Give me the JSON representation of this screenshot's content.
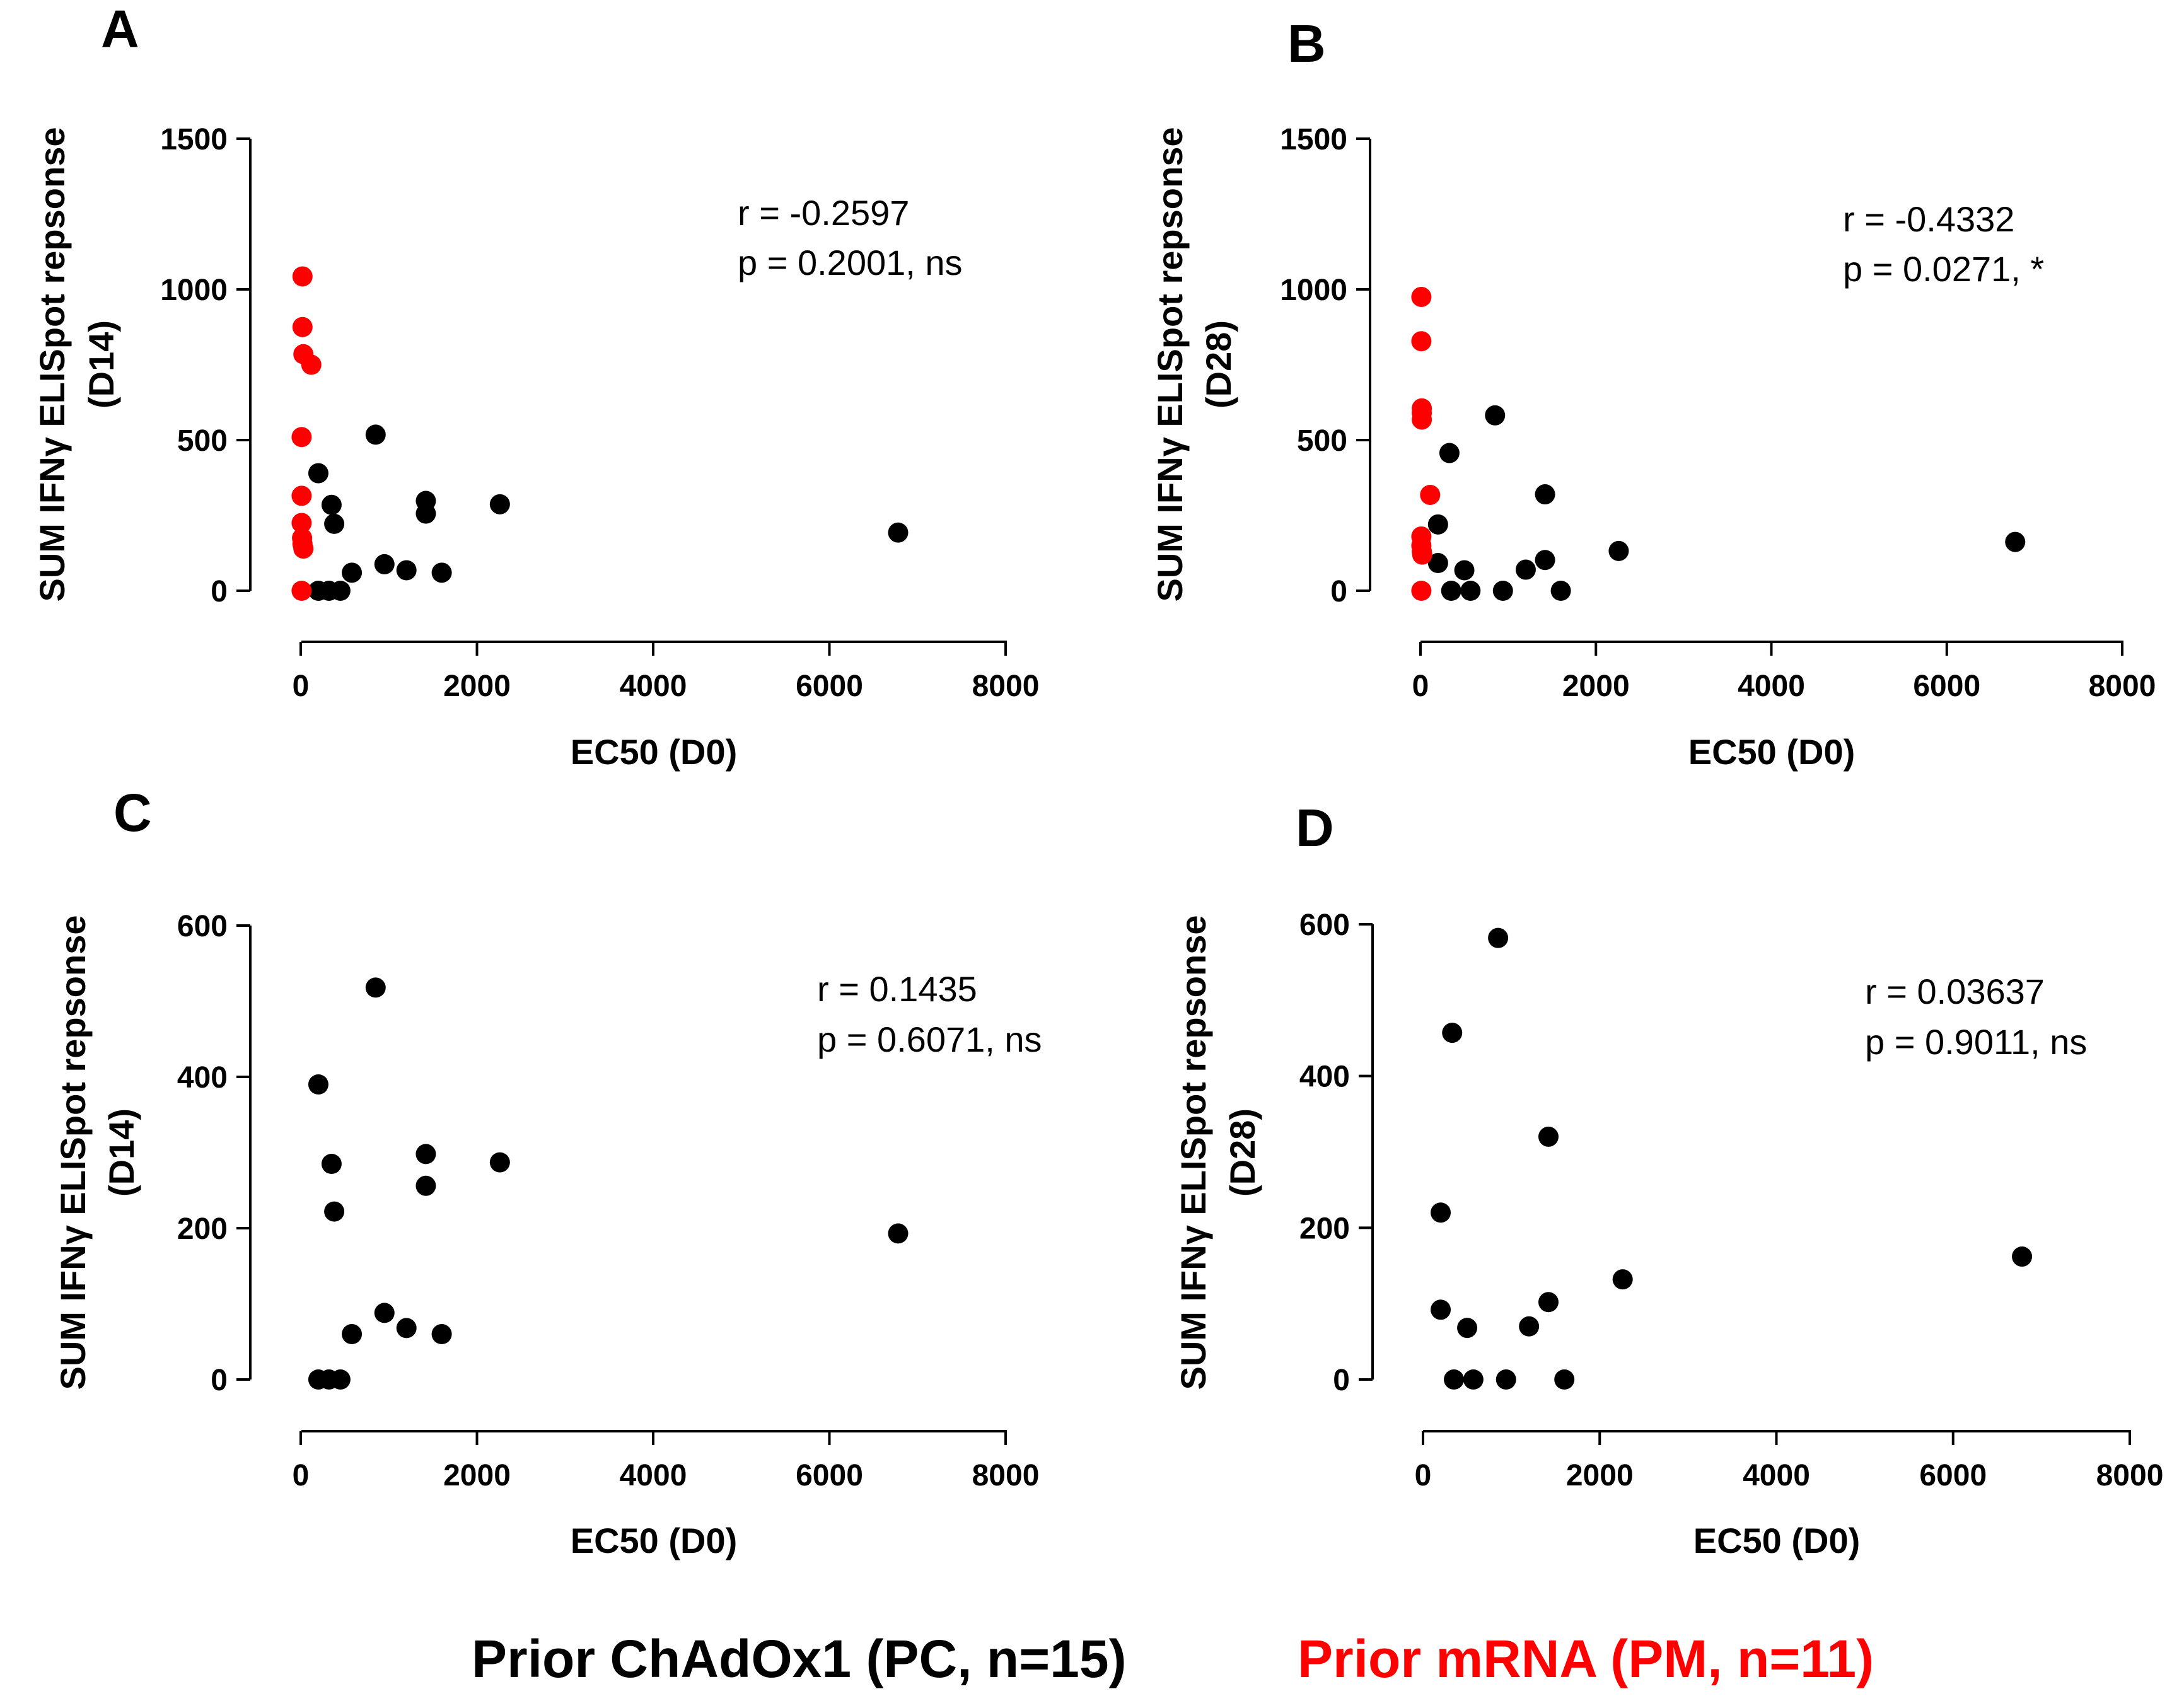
{
  "legend": {
    "pc": {
      "label": "Prior ChAdOx1 (PC, n=15)",
      "color": "#000000"
    },
    "pm": {
      "label": "Prior mRNA (PM, n=11)",
      "color": "#ff0000"
    }
  },
  "chart_data": [
    {
      "panel": "A",
      "type": "scatter",
      "xlabel": "EC50 (D0)",
      "ylabel_line1": "SUM IFNγ ELISpot repsonse",
      "ylabel_line2": "(D14)",
      "xlim": [
        0,
        8000
      ],
      "ylim": [
        0,
        1500
      ],
      "xticks": [
        0,
        2000,
        4000,
        6000,
        8000
      ],
      "yticks": [
        0,
        500,
        1000,
        1500
      ],
      "stat_r": "r = -0.2597",
      "stat_p": "p = 0.2001, ns",
      "series": [
        {
          "name": "Prior ChAdOx1 (PC, n=15)",
          "color": "#000000",
          "points": [
            [
              200,
              390
            ],
            [
              350,
              285
            ],
            [
              380,
              222
            ],
            [
              850,
              518
            ],
            [
              950,
              88
            ],
            [
              1200,
              68
            ],
            [
              1420,
              298
            ],
            [
              1420,
              256
            ],
            [
              1600,
              60
            ],
            [
              2260,
              287
            ],
            [
              6780,
              193
            ],
            [
              200,
              0
            ],
            [
              320,
              0
            ],
            [
              450,
              0
            ],
            [
              580,
              60
            ]
          ]
        },
        {
          "name": "Prior mRNA (PM, n=11)",
          "color": "#ff0000",
          "points": [
            [
              20,
              1043
            ],
            [
              20,
              875
            ],
            [
              30,
              785
            ],
            [
              120,
              750
            ],
            [
              10,
              510
            ],
            [
              10,
              315
            ],
            [
              10,
              225
            ],
            [
              15,
              175
            ],
            [
              20,
              155
            ],
            [
              30,
              140
            ],
            [
              10,
              0
            ]
          ]
        }
      ]
    },
    {
      "panel": "B",
      "type": "scatter",
      "xlabel": "EC50 (D0)",
      "ylabel_line1": "SUM IFNγ ELISpot repsonse",
      "ylabel_line2": "(D28)",
      "xlim": [
        0,
        8000
      ],
      "ylim": [
        0,
        1500
      ],
      "xticks": [
        0,
        2000,
        4000,
        6000,
        8000
      ],
      "yticks": [
        0,
        500,
        1000,
        1500
      ],
      "stat_r": "r = -0.4332",
      "stat_p": "p = 0.0271, *",
      "series": [
        {
          "name": "Prior ChAdOx1 (PC, n=15)",
          "color": "#000000",
          "points": [
            [
              200,
              220
            ],
            [
              330,
              457
            ],
            [
              850,
              582
            ],
            [
              1420,
              320
            ],
            [
              200,
              92
            ],
            [
              500,
              68
            ],
            [
              1200,
              70
            ],
            [
              1420,
              102
            ],
            [
              2260,
              132
            ],
            [
              6780,
              162
            ],
            [
              350,
              0
            ],
            [
              570,
              0
            ],
            [
              940,
              0
            ],
            [
              1600,
              0
            ]
          ]
        },
        {
          "name": "Prior mRNA (PM, n=11)",
          "color": "#ff0000",
          "points": [
            [
              10,
              975
            ],
            [
              10,
              828
            ],
            [
              15,
              605
            ],
            [
              15,
              590
            ],
            [
              15,
              568
            ],
            [
              110,
              318
            ],
            [
              10,
              180
            ],
            [
              10,
              150
            ],
            [
              15,
              130
            ],
            [
              20,
              120
            ],
            [
              10,
              0
            ]
          ]
        }
      ]
    },
    {
      "panel": "C",
      "type": "scatter",
      "xlabel": "EC50 (D0)",
      "ylabel_line1": "SUM IFNγ ELISpot repsonse",
      "ylabel_line2": "(D14)",
      "xlim": [
        0,
        8000
      ],
      "ylim": [
        0,
        600
      ],
      "xticks": [
        0,
        2000,
        4000,
        6000,
        8000
      ],
      "yticks": [
        0,
        200,
        400,
        600
      ],
      "stat_r": "r = 0.1435",
      "stat_p": "p = 0.6071, ns",
      "series": [
        {
          "name": "Prior ChAdOx1 (PC, n=15)",
          "color": "#000000",
          "points": [
            [
              200,
              390
            ],
            [
              350,
              285
            ],
            [
              380,
              222
            ],
            [
              850,
              518
            ],
            [
              950,
              88
            ],
            [
              1200,
              68
            ],
            [
              1420,
              298
            ],
            [
              1420,
              256
            ],
            [
              1600,
              60
            ],
            [
              2260,
              287
            ],
            [
              6780,
              193
            ],
            [
              200,
              0
            ],
            [
              320,
              0
            ],
            [
              450,
              0
            ],
            [
              580,
              60
            ]
          ]
        }
      ]
    },
    {
      "panel": "D",
      "type": "scatter",
      "xlabel": "EC50 (D0)",
      "ylabel_line1": "SUM IFNγ ELISpot repsonse",
      "ylabel_line2": "(D28)",
      "xlim": [
        0,
        8000
      ],
      "ylim": [
        0,
        600
      ],
      "xticks": [
        0,
        2000,
        4000,
        6000,
        8000
      ],
      "yticks": [
        0,
        200,
        400,
        600
      ],
      "stat_r": "r = 0.03637",
      "stat_p": "p = 0.9011, ns",
      "series": [
        {
          "name": "Prior ChAdOx1 (PC, n=15)",
          "color": "#000000",
          "points": [
            [
              200,
              220
            ],
            [
              330,
              457
            ],
            [
              850,
              582
            ],
            [
              1420,
              320
            ],
            [
              200,
              92
            ],
            [
              500,
              68
            ],
            [
              1200,
              70
            ],
            [
              1420,
              102
            ],
            [
              2260,
              132
            ],
            [
              6780,
              162
            ],
            [
              350,
              0
            ],
            [
              570,
              0
            ],
            [
              940,
              0
            ],
            [
              1600,
              0
            ]
          ]
        }
      ]
    }
  ]
}
